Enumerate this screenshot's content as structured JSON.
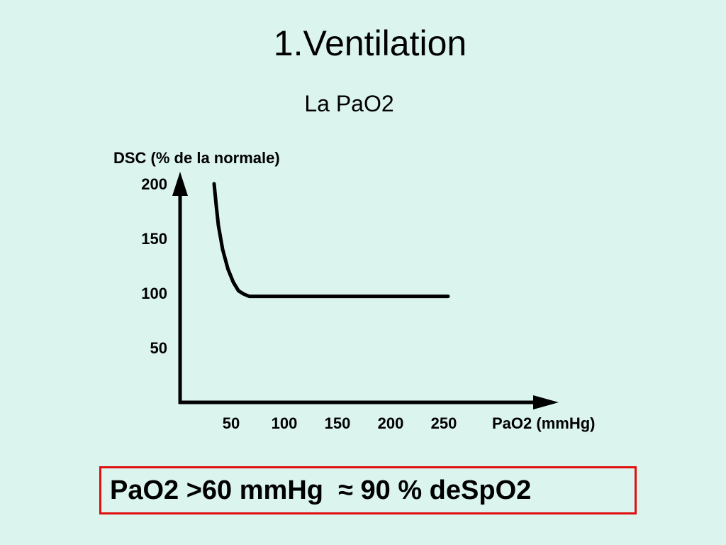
{
  "slide": {
    "title": "1.Ventilation",
    "subtitle": "La PaO2"
  },
  "chart_data": {
    "type": "line",
    "title": "",
    "ylabel": "DSC (% de la normale)",
    "xlabel": "PaO2 (mmHg)",
    "x_ticks": [
      50,
      100,
      150,
      200,
      250
    ],
    "y_ticks": [
      50,
      100,
      150,
      200
    ],
    "xlim": [
      0,
      320
    ],
    "ylim": [
      0,
      215
    ],
    "grid": false,
    "series": [
      {
        "color": "#000000",
        "points": [
          [
            32,
            200
          ],
          [
            34,
            180
          ],
          [
            36,
            162
          ],
          [
            40,
            140
          ],
          [
            45,
            122
          ],
          [
            50,
            110
          ],
          [
            55,
            102
          ],
          [
            60,
            99
          ],
          [
            65,
            97
          ],
          [
            70,
            97
          ],
          [
            100,
            97
          ],
          [
            150,
            97
          ],
          [
            200,
            97
          ],
          [
            250,
            97
          ],
          [
            252,
            97
          ]
        ]
      }
    ]
  },
  "callout": {
    "text": "PaO2 >60 mmHg  ≈ 90 % deSpO2",
    "border_color": "#e01010"
  }
}
